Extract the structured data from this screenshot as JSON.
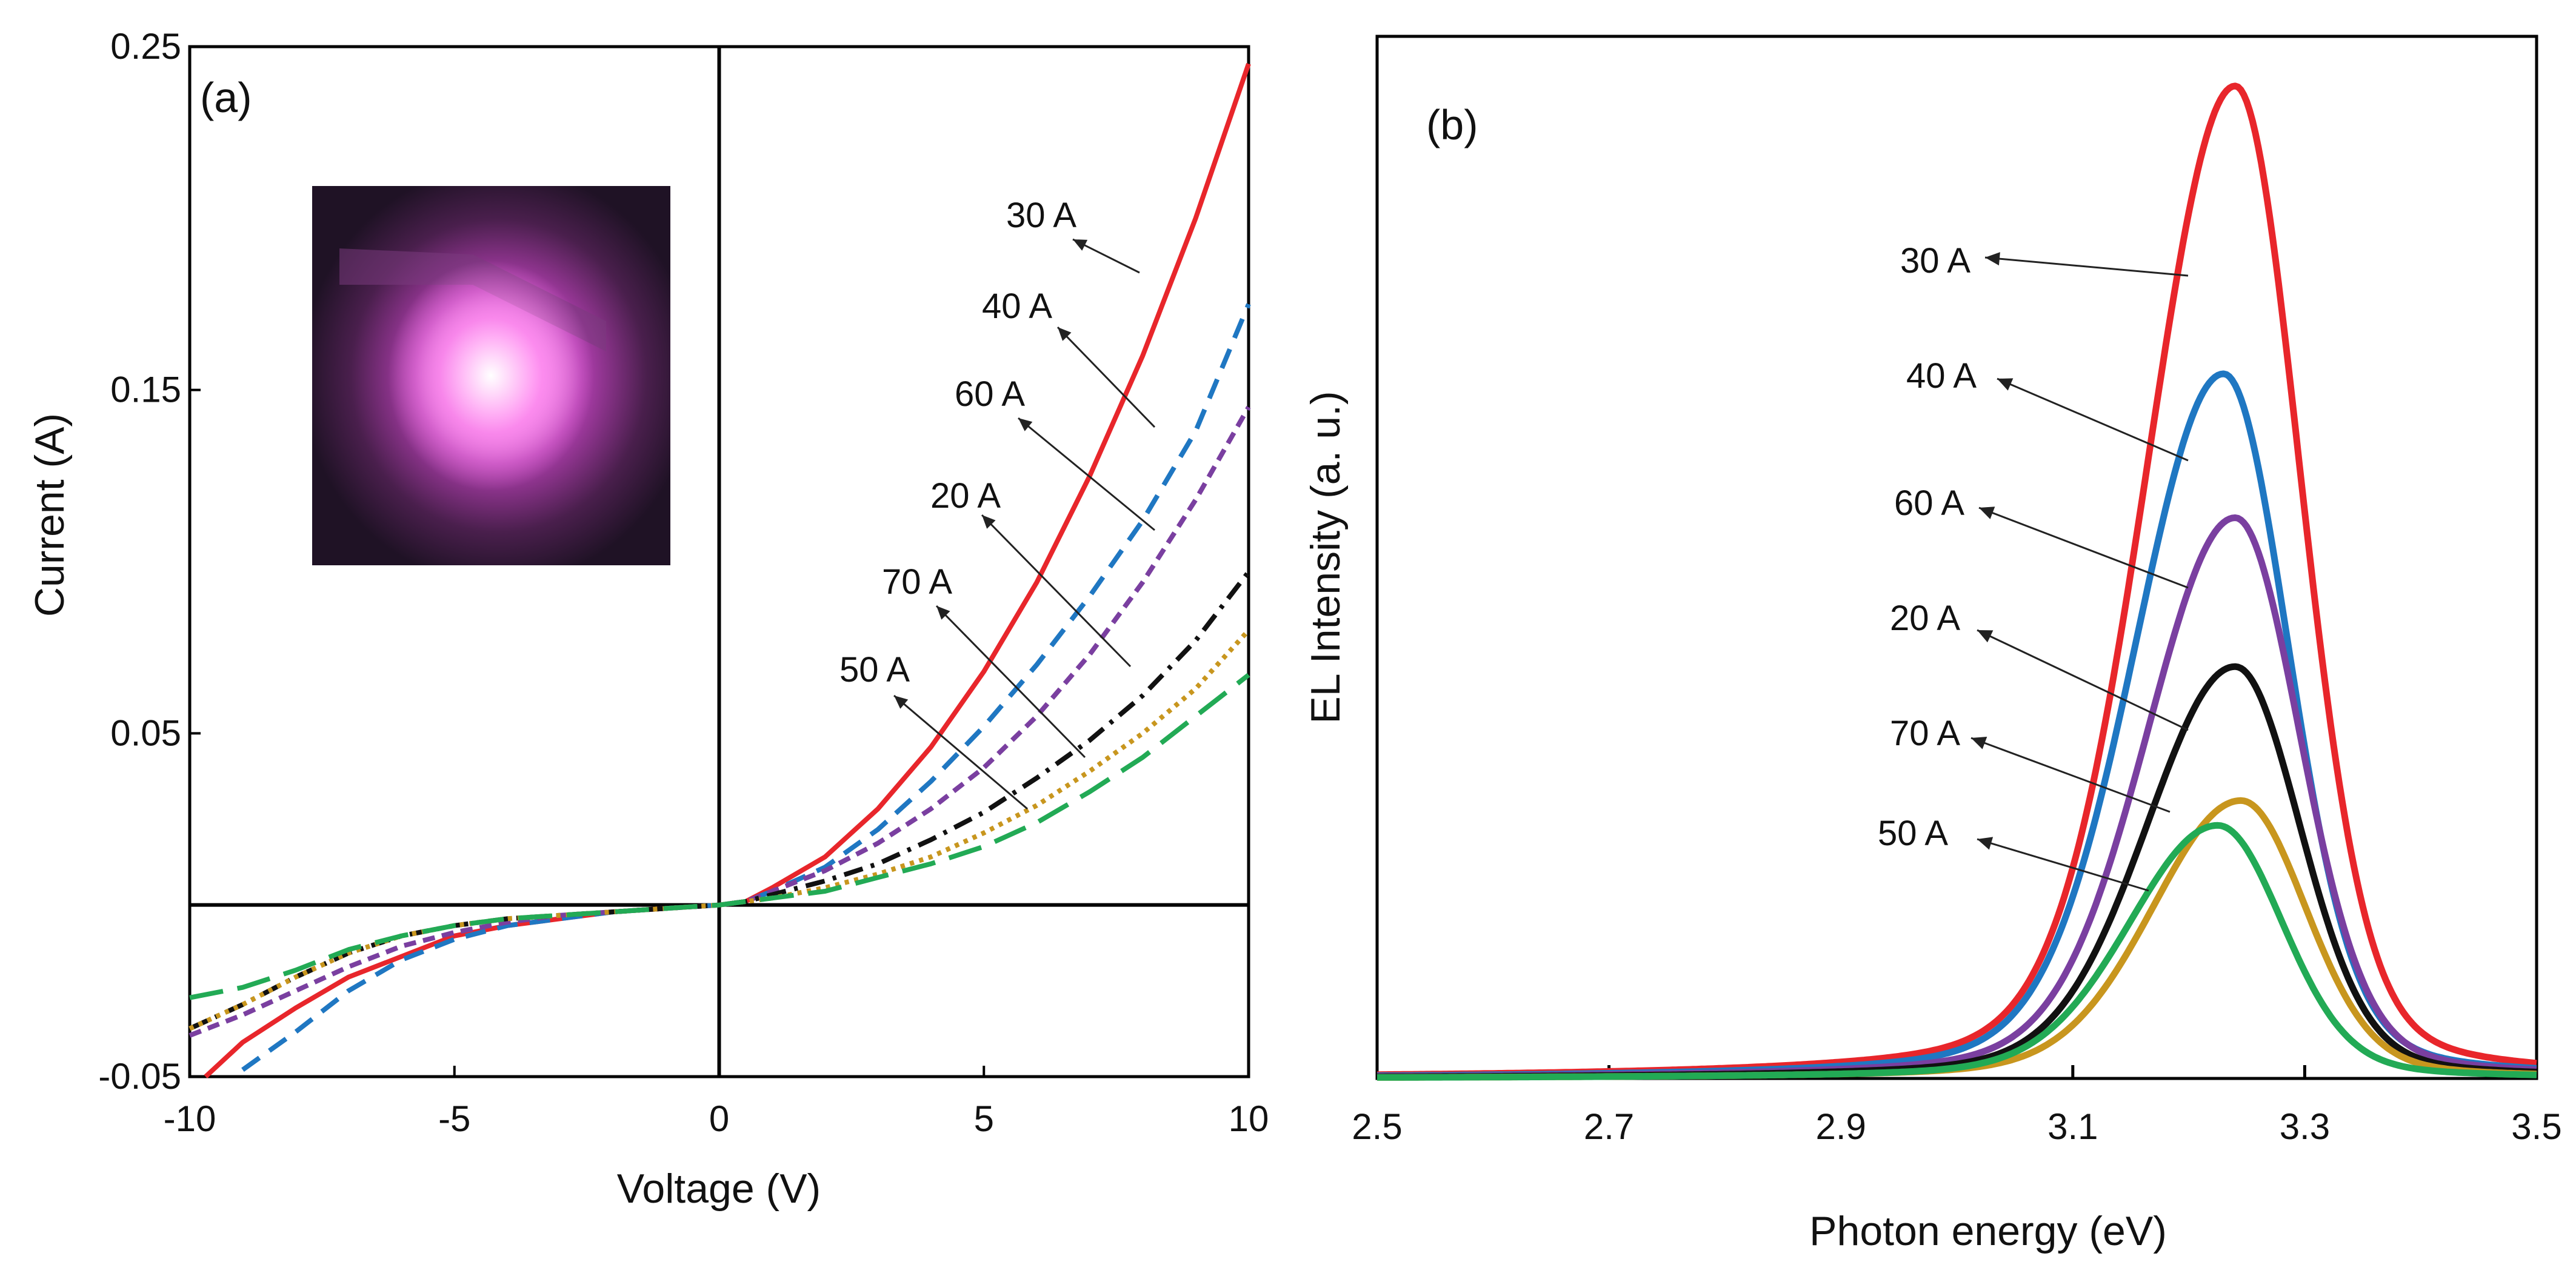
{
  "chart_data": [
    {
      "type": "line",
      "panel_label": "(a)",
      "xlabel": "Voltage (V)",
      "ylabel": "Current (A)",
      "xlim": [
        -10,
        10
      ],
      "ylim": [
        -0.05,
        0.25
      ],
      "xticks": [
        -10,
        -5,
        0,
        5,
        10
      ],
      "xtick_labels": [
        "-10",
        "-5",
        "0",
        "5",
        "10"
      ],
      "yticks": [
        -0.05,
        0.05,
        0.15,
        0.25
      ],
      "ytick_labels": [
        "-0.05",
        "0.05",
        "0.15",
        "0.25"
      ],
      "inset": "photo-of-glowing-sample",
      "series": [
        {
          "name": "30 A",
          "color": "#e8262b",
          "dash": "solid",
          "x": [
            -9.7,
            -9,
            -8,
            -7,
            -6,
            -5,
            -4,
            -3,
            -2,
            -1,
            0,
            0.5,
            1,
            2,
            3,
            4,
            5,
            6,
            7,
            8,
            9,
            10
          ],
          "y": [
            -0.05,
            -0.04,
            -0.03,
            -0.021,
            -0.015,
            -0.009,
            -0.006,
            -0.004,
            -0.002,
            -0.001,
            0,
            0.001,
            0.005,
            0.014,
            0.028,
            0.046,
            0.068,
            0.094,
            0.125,
            0.16,
            0.2,
            0.245
          ]
        },
        {
          "name": "40 A",
          "color": "#1f77c2",
          "dash": "dashed",
          "x": [
            -9,
            -8,
            -7,
            -6,
            -5,
            -4,
            -3,
            -2,
            -1,
            0,
            0.5,
            1,
            2,
            3,
            4,
            5,
            6,
            7,
            8,
            9,
            10
          ],
          "y": [
            -0.048,
            -0.037,
            -0.025,
            -0.016,
            -0.01,
            -0.006,
            -0.004,
            -0.002,
            -0.001,
            0,
            0.001,
            0.004,
            0.011,
            0.022,
            0.036,
            0.052,
            0.07,
            0.09,
            0.112,
            0.138,
            0.175
          ]
        },
        {
          "name": "60 A",
          "color": "#7a3fa0",
          "dash": "short-dash",
          "x": [
            -10,
            -9,
            -8,
            -7,
            -6,
            -5,
            -4,
            -3,
            -2,
            -1,
            0,
            0.5,
            1,
            2,
            3,
            4,
            5,
            6,
            7,
            8,
            9,
            10
          ],
          "y": [
            -0.038,
            -0.032,
            -0.025,
            -0.018,
            -0.012,
            -0.008,
            -0.005,
            -0.003,
            -0.002,
            -0.001,
            0,
            0.001,
            0.004,
            0.01,
            0.018,
            0.028,
            0.04,
            0.055,
            0.073,
            0.094,
            0.118,
            0.145
          ]
        },
        {
          "name": "20 A",
          "color": "#111111",
          "dash": "dash-dot",
          "x": [
            -10,
            -9,
            -8,
            -7,
            -6,
            -5,
            -4,
            -3,
            -2,
            -1,
            0,
            0.5,
            1,
            2,
            3,
            4,
            5,
            6,
            7,
            8,
            9,
            10
          ],
          "y": [
            -0.036,
            -0.029,
            -0.021,
            -0.014,
            -0.009,
            -0.006,
            -0.004,
            -0.003,
            -0.002,
            -0.001,
            0,
            0.001,
            0.003,
            0.007,
            0.012,
            0.019,
            0.027,
            0.037,
            0.048,
            0.061,
            0.077,
            0.097
          ]
        },
        {
          "name": "70 A",
          "color": "#c8961e",
          "dash": "dotted",
          "x": [
            -10,
            -9,
            -8,
            -7,
            -6,
            -5,
            -4,
            -3,
            -2,
            -1,
            0,
            0.5,
            1,
            2,
            3,
            4,
            5,
            6,
            7,
            8,
            9,
            10
          ],
          "y": [
            -0.036,
            -0.029,
            -0.021,
            -0.014,
            -0.009,
            -0.006,
            -0.004,
            -0.003,
            -0.002,
            -0.001,
            0,
            0.001,
            0.002,
            0.005,
            0.009,
            0.014,
            0.021,
            0.029,
            0.039,
            0.05,
            0.063,
            0.08
          ]
        },
        {
          "name": "50 A",
          "color": "#22aa55",
          "dash": "long-dash",
          "x": [
            -10,
            -9,
            -8,
            -7,
            -6,
            -5,
            -4,
            -3,
            -2,
            -1,
            0,
            0.5,
            1,
            2,
            3,
            4,
            5,
            6,
            7,
            8,
            9,
            10
          ],
          "y": [
            -0.027,
            -0.024,
            -0.019,
            -0.013,
            -0.009,
            -0.006,
            -0.004,
            -0.003,
            -0.002,
            -0.001,
            0,
            0.001,
            0.002,
            0.004,
            0.008,
            0.012,
            0.017,
            0.024,
            0.033,
            0.043,
            0.055,
            0.067
          ]
        }
      ]
    },
    {
      "type": "line",
      "panel_label": "(b)",
      "xlabel": "Photon energy (eV)",
      "ylabel": "EL Intensity (a. u.)",
      "xlim": [
        2.5,
        3.5
      ],
      "ylim": [
        0,
        1.05
      ],
      "xticks": [
        2.5,
        2.7,
        2.9,
        3.1,
        3.3,
        3.5
      ],
      "xtick_labels": [
        "2.5",
        "2.7",
        "2.9",
        "3.1",
        "3.3",
        "3.5"
      ],
      "series": [
        {
          "name": "30 A",
          "color": "#e8262b",
          "center": 3.24,
          "peak": 1.0
        },
        {
          "name": "40 A",
          "color": "#1f77c2",
          "center": 3.23,
          "peak": 0.71
        },
        {
          "name": "60 A",
          "color": "#7a3fa0",
          "center": 3.24,
          "peak": 0.565
        },
        {
          "name": "20 A",
          "color": "#111111",
          "center": 3.24,
          "peak": 0.415
        },
        {
          "name": "70 A",
          "color": "#c8961e",
          "center": 3.245,
          "peak": 0.28
        },
        {
          "name": "50 A",
          "color": "#22aa55",
          "center": 3.225,
          "peak": 0.255
        }
      ]
    }
  ]
}
